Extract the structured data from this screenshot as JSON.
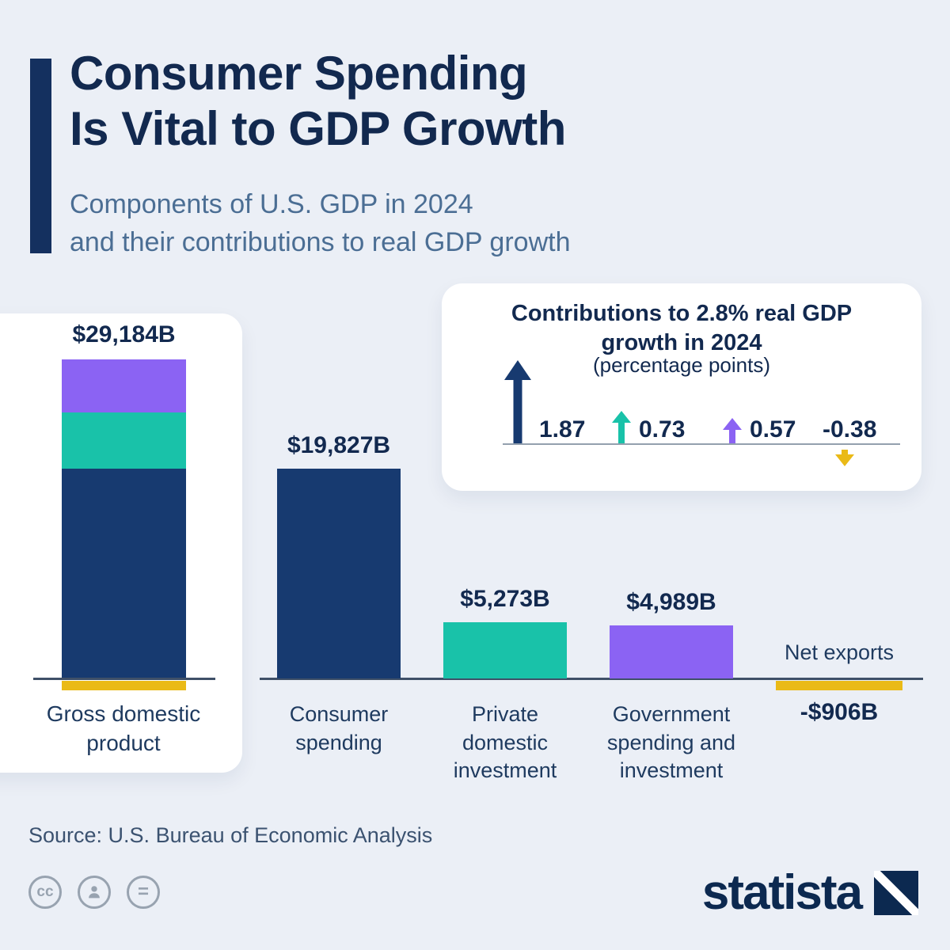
{
  "header": {
    "title_line1": "Consumer Spending",
    "title_line2": "Is Vital to GDP Growth",
    "subtitle_line1": "Components of U.S. GDP in 2024",
    "subtitle_line2": "and their contributions to real GDP growth"
  },
  "chart_data": {
    "type": "bar",
    "title": "Consumer Spending Is Vital to GDP Growth",
    "subtitle": "Components of U.S. GDP in 2024 and their contributions to real GDP growth",
    "unit": "billion USD",
    "orientation": "vertical",
    "baseline": 0,
    "categories": [
      "Gross domestic product",
      "Consumer spending",
      "Private domestic investment",
      "Government spending and investment",
      "Net exports"
    ],
    "values": [
      29184,
      19827,
      5273,
      4989,
      -906
    ],
    "value_labels": [
      "$29,184B",
      "$19,827B",
      "$5,273B",
      "$4,989B",
      "-$906B"
    ],
    "gdp": {
      "label": "Gross domestic product",
      "value": 29184,
      "value_label": "$29,184B",
      "stack": [
        {
          "name": "Government spending and investment",
          "value": 4989,
          "color": "#8b63f3"
        },
        {
          "name": "Private domestic investment",
          "value": 5273,
          "color": "#19c2a9"
        },
        {
          "name": "Consumer spending",
          "value": 19827,
          "color": "#173a70"
        },
        {
          "name": "Net exports",
          "value": -906,
          "color": "#eaba17"
        }
      ]
    },
    "bars": [
      {
        "label": "Consumer spending",
        "value": 19827,
        "value_label": "$19,827B",
        "color": "#173a70"
      },
      {
        "label": "Private domestic investment",
        "value": 5273,
        "value_label": "$5,273B",
        "color": "#19c2a9"
      },
      {
        "label": "Government spending and investment",
        "value": 4989,
        "value_label": "$4,989B",
        "color": "#8b63f3"
      },
      {
        "label": "Net exports",
        "value": -906,
        "value_label": "-$906B",
        "color": "#eaba17"
      }
    ],
    "contributions": {
      "title_line1": "Contributions to 2.8% real GDP",
      "title_line2": "growth in 2024",
      "subtitle": "(percentage points)",
      "points": [
        {
          "label": "1.87",
          "value": 1.87,
          "color": "#173a70",
          "series": "Consumer spending"
        },
        {
          "label": "0.73",
          "value": 0.73,
          "color": "#19c2a9",
          "series": "Private domestic investment"
        },
        {
          "label": "0.57",
          "value": 0.57,
          "color": "#8b63f3",
          "series": "Government spending and investment"
        },
        {
          "label": "-0.38",
          "value": -0.38,
          "color": "#eaba17",
          "series": "Net exports"
        }
      ]
    }
  },
  "footer": {
    "source": "Source: U.S. Bureau of Economic Analysis",
    "cc_label": "cc",
    "equals_label": "=",
    "brand": "statista"
  },
  "colors": {
    "background": "#ebeff6",
    "ink": "#12294f",
    "navy": "#173a70",
    "teal": "#19c2a9",
    "purple": "#8b63f3",
    "yellow": "#eaba17",
    "subtitle": "#4b6e94"
  }
}
